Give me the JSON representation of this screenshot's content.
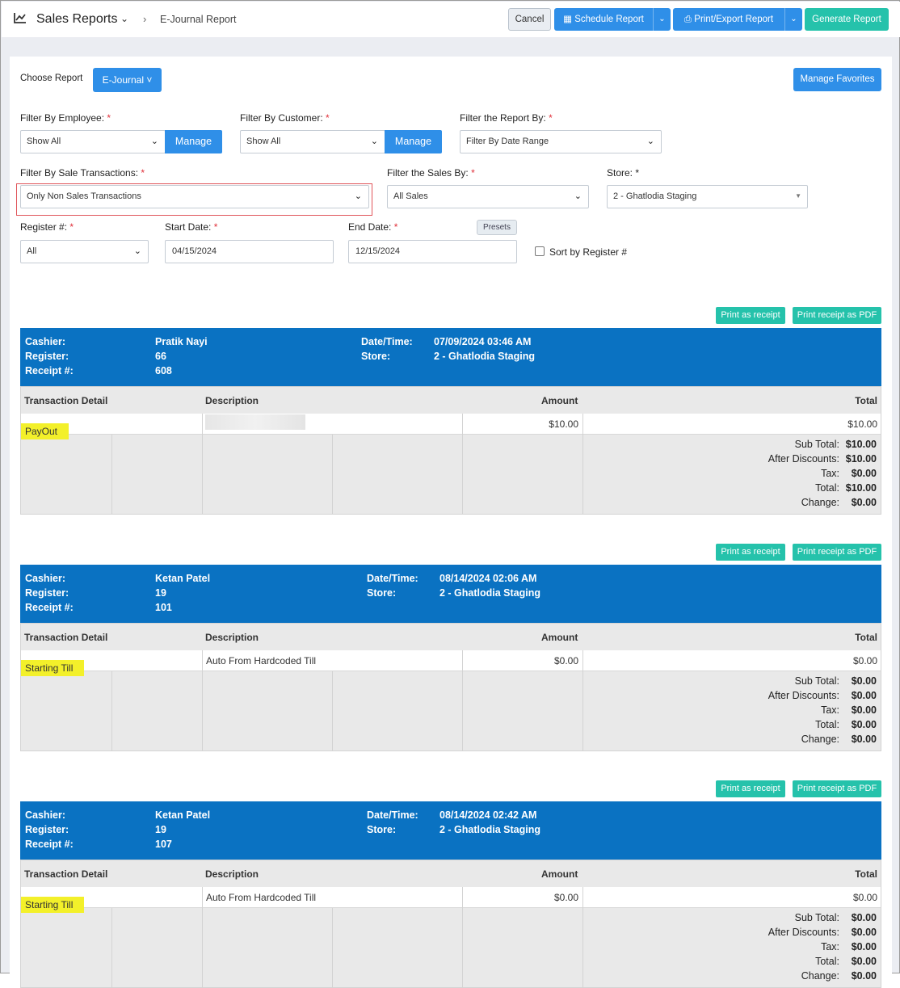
{
  "header": {
    "title": "Sales Reports",
    "breadcrumb": "E-Journal Report",
    "cancel": "Cancel",
    "schedule": "Schedule Report",
    "print_export": "Print/Export Report",
    "generate": "Generate Report"
  },
  "controls": {
    "choose_report_label": "Choose Report",
    "choose_report_value": "E-Journal",
    "manage_favorites": "Manage Favorites",
    "employee_label": "Filter By Employee:",
    "employee_value": "Show All",
    "customer_label": "Filter By Customer:",
    "customer_value": "Show All",
    "manage": "Manage",
    "report_by_label": "Filter the Report By:",
    "report_by_value": "Filter By Date Range",
    "sale_tx_label": "Filter By Sale Transactions:",
    "sale_tx_value": "Only Non Sales Transactions",
    "sales_by_label": "Filter the Sales By:",
    "sales_by_value": "All Sales",
    "store_label": "Store: *",
    "store_value": "2 - Ghatlodia Staging",
    "register_label": "Register #:",
    "register_value": "All",
    "start_label": "Start Date:",
    "start_value": "04/15/2024",
    "end_label": "End Date:",
    "end_value": "12/15/2024",
    "presets": "Presets",
    "sort_label": "Sort by Register #",
    "required_mark": "*"
  },
  "labels": {
    "print_receipt": "Print as receipt",
    "print_pdf": "Print receipt as PDF",
    "cashier": "Cashier:",
    "register": "Register:",
    "receipt": "Receipt #:",
    "datetime": "Date/Time:",
    "store": "Store:",
    "col_detail": "Transaction Detail",
    "col_desc": "Description",
    "col_amount": "Amount",
    "col_total": "Total",
    "sub_total": "Sub Total:",
    "after_discounts": "After Discounts:",
    "tax": "Tax:",
    "total": "Total:",
    "change": "Change:"
  },
  "receipts": [
    {
      "cashier": "Pratik Nayi",
      "register": "66",
      "receipt": "608",
      "datetime": "07/09/2024 03:46 AM",
      "store": "2 - Ghatlodia Staging",
      "detail": "PayOut",
      "description": "",
      "amount": "$10.00",
      "line_total": "$10.00",
      "sub_total": "$10.00",
      "after_discounts": "$10.00",
      "tax": "$0.00",
      "total": "$10.00",
      "change": "$0.00"
    },
    {
      "cashier": "Ketan Patel",
      "register": "19",
      "receipt": "101",
      "datetime": "08/14/2024 02:06 AM",
      "store": "2 - Ghatlodia Staging",
      "detail": "Starting Till",
      "description": "Auto From Hardcoded Till",
      "amount": "$0.00",
      "line_total": "$0.00",
      "sub_total": "$0.00",
      "after_discounts": "$0.00",
      "tax": "$0.00",
      "total": "$0.00",
      "change": "$0.00"
    },
    {
      "cashier": "Ketan Patel",
      "register": "19",
      "receipt": "107",
      "datetime": "08/14/2024 02:42 AM",
      "store": "2 - Ghatlodia Staging",
      "detail": "Starting Till",
      "description": "Auto From Hardcoded Till",
      "amount": "$0.00",
      "line_total": "$0.00",
      "sub_total": "$0.00",
      "after_discounts": "$0.00",
      "tax": "$0.00",
      "total": "$0.00",
      "change": "$0.00"
    }
  ],
  "colors": {
    "primary": "#2f8fe8",
    "accent": "#25c2ab",
    "header_band": "#0a72c2",
    "highlight": "#f3f02a",
    "annotation_box": "#e0555a"
  }
}
